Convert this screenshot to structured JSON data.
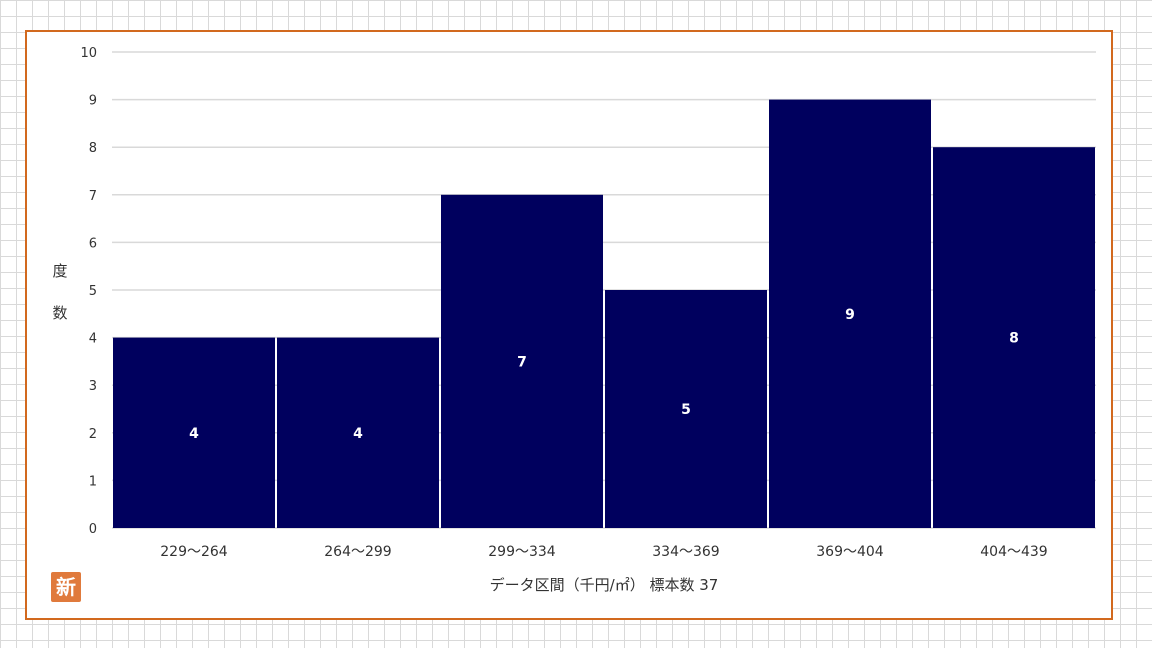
{
  "colors": {
    "bar": "#00005e",
    "grid": "#d9d9d9",
    "frame": "#d2691e",
    "logo": "#e07a3c"
  },
  "logo": {
    "text": "新"
  },
  "chart_data": {
    "type": "bar",
    "categories": [
      "229～264",
      "264～299",
      "299～334",
      "334～369",
      "369～404",
      "404～439"
    ],
    "values": [
      4,
      4,
      7,
      5,
      9,
      8
    ],
    "title": "",
    "xlabel": "データ区間（千円/㎡） 標本数 37",
    "ylabel": "度数",
    "ylim": [
      0,
      10
    ],
    "yticks": [
      0,
      1,
      2,
      3,
      4,
      5,
      6,
      7,
      8,
      9,
      10
    ],
    "grid": true,
    "legend": "none"
  }
}
